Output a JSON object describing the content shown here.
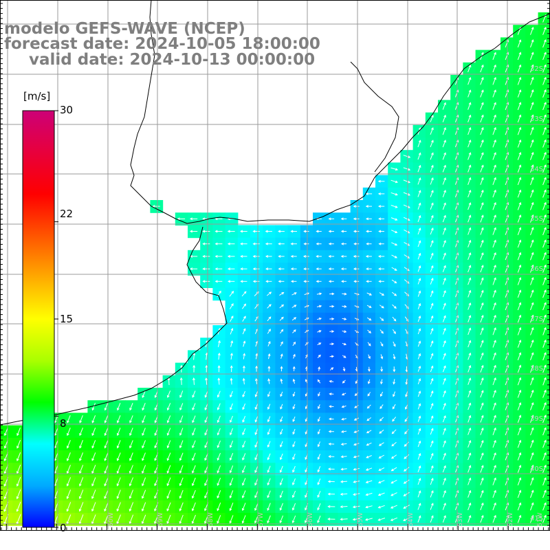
{
  "title": {
    "line1": "modelo GEFS-WAVE (NCEP)",
    "line2": "forecast date: 2024-10-05 18:00:00",
    "line3": "valid date: 2024-10-13 00:00:00"
  },
  "colorbar": {
    "unit": "[m/s]",
    "ticks": [
      "30",
      "22",
      "15",
      "8",
      "0"
    ],
    "tick_values": [
      30,
      22,
      15,
      8,
      0
    ],
    "range": [
      0,
      30
    ],
    "colors": [
      "#0000ff",
      "#00aaff",
      "#00ffff",
      "#00ff00",
      "#aaff00",
      "#ffff00",
      "#ffaa00",
      "#ff5500",
      "#ff0000",
      "#e8003c",
      "#cc0077"
    ]
  },
  "lat_labels": [
    "32S",
    "33S",
    "34S",
    "35S",
    "36S",
    "37S",
    "38S",
    "39S",
    "40S",
    "41S"
  ],
  "lon_labels": [
    "60W",
    "59W",
    "58W",
    "57W",
    "56W",
    "55W",
    "54W",
    "53W",
    "52W",
    "51W"
  ],
  "colors": {
    "ocean_min": "#0055ff",
    "ocean_mid": "#00ddff",
    "ocean_high": "#00ff44",
    "land": "#ffffff",
    "grid": "#999999",
    "coast": "#000000",
    "arrows": "#ffffff"
  }
}
